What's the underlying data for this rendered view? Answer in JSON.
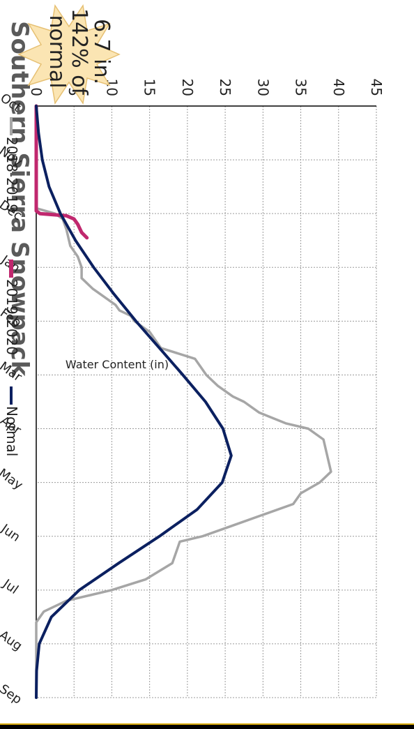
{
  "chart_data": {
    "type": "line",
    "title": "Southern Sierra Snowpack",
    "ylabel": "Water Content (in)",
    "xlabel": "",
    "ylim": [
      0,
      45
    ],
    "yticks": [
      0,
      5,
      10,
      15,
      20,
      25,
      30,
      35,
      40,
      45
    ],
    "categories": [
      "Oct",
      "Nov",
      "Dec",
      "Jan",
      "Feb",
      "Mar",
      "Apr",
      "May",
      "Jun",
      "Jul",
      "Aug",
      "Sep"
    ],
    "grid": true,
    "legend": "bottom",
    "series": [
      {
        "name": "2018-2019",
        "color": "#a6a6a6",
        "x": [
          0,
          1.0,
          1.9,
          2.0,
          2.1,
          2.3,
          2.6,
          2.8,
          3.0,
          3.2,
          3.4,
          3.7,
          3.8,
          3.9,
          4.0,
          4.2,
          4.4,
          4.5,
          4.7,
          4.9,
          5.0,
          5.2,
          5.4,
          5.5,
          5.7,
          5.9,
          6.0,
          6.2,
          6.5,
          6.8,
          7.0,
          7.2,
          7.4,
          7.6,
          7.8,
          8.0,
          8.1,
          8.3,
          8.5,
          8.8,
          9.0,
          9.1,
          9.2,
          9.4,
          9.6,
          11.0
        ],
        "values": [
          0,
          0,
          0,
          2.5,
          3.5,
          4.0,
          4.5,
          5.5,
          6.0,
          6.0,
          7.5,
          10.5,
          11.0,
          12.5,
          13.0,
          15.0,
          16.0,
          16.5,
          21.0,
          22.0,
          22.5,
          24.0,
          26.0,
          27.5,
          29.5,
          33.0,
          36.0,
          38.0,
          38.5,
          39.0,
          37.5,
          35.0,
          34.0,
          30.0,
          26.0,
          22.0,
          19.0,
          18.5,
          18.0,
          14.5,
          10.0,
          7.0,
          4.0,
          1.0,
          0.0,
          0
        ]
      },
      {
        "name": "2019-2020",
        "color": "#c0286e",
        "x": [
          0,
          1.95,
          2.0,
          2.04,
          2.1,
          2.2,
          2.35,
          2.45
        ],
        "values": [
          0,
          0,
          0.5,
          4.0,
          5.0,
          5.5,
          6.0,
          6.7
        ]
      },
      {
        "name": "Normal",
        "color": "#0b2060",
        "x": [
          0,
          0.5,
          1.0,
          1.5,
          2.0,
          2.5,
          3.0,
          3.5,
          4.0,
          4.5,
          5.0,
          5.5,
          6.0,
          6.5,
          7.0,
          7.5,
          8.0,
          8.5,
          9.0,
          9.5,
          10.0,
          10.5,
          11.0
        ],
        "values": [
          0,
          0.3,
          0.8,
          1.7,
          3.2,
          5.2,
          7.6,
          10.3,
          13.2,
          16.3,
          19.4,
          22.4,
          24.7,
          25.8,
          24.6,
          21.3,
          16.3,
          10.9,
          5.7,
          2.0,
          0.4,
          0.05,
          0
        ]
      }
    ],
    "annotation": {
      "lines": [
        "6.7 in.",
        "142% of",
        "normal"
      ]
    }
  }
}
